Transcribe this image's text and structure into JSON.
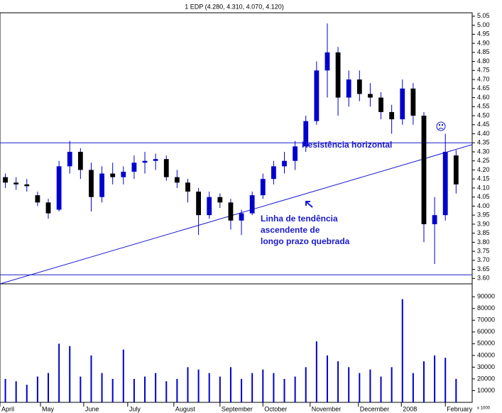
{
  "chart_data": {
    "type": "candlestick",
    "title": "1 EDP (4.280, 4.310, 4.070, 4.120)",
    "x": [
      0.5,
      1.5,
      2.5,
      3.5,
      4.5,
      5.5,
      6.5,
      7.5,
      8.5,
      9.5,
      10.5,
      11.5,
      12.5,
      13.5,
      14.5,
      15.5,
      16.5,
      17.5,
      18.5,
      19.5,
      20.5,
      21.5,
      22.5,
      23.5,
      24.5,
      25.5,
      26.5,
      27.5,
      28.5,
      29.5,
      30.5,
      31.5,
      32.5,
      33.5,
      34.5,
      35.5,
      36.5,
      37.5,
      38.5,
      39.5,
      40.5,
      41.5,
      42.5
    ],
    "open": [
      4.16,
      4.13,
      4.12,
      4.06,
      4.02,
      3.98,
      4.22,
      4.3,
      4.2,
      4.05,
      4.18,
      4.16,
      4.19,
      4.24,
      4.25,
      4.26,
      4.16,
      4.13,
      4.08,
      3.95,
      4.05,
      4.02,
      3.92,
      3.96,
      4.06,
      4.15,
      4.22,
      4.25,
      4.33,
      4.47,
      4.75,
      4.85,
      4.6,
      4.7,
      4.62,
      4.6,
      4.52,
      4.48,
      4.65,
      4.5,
      3.9,
      3.95,
      4.28
    ],
    "high": [
      4.18,
      4.16,
      4.15,
      4.08,
      4.04,
      4.25,
      4.36,
      4.32,
      4.24,
      4.22,
      4.24,
      4.22,
      4.28,
      4.3,
      4.29,
      4.28,
      4.2,
      4.15,
      4.1,
      4.08,
      4.07,
      4.04,
      3.98,
      4.08,
      4.18,
      4.25,
      4.3,
      4.36,
      4.5,
      4.8,
      5.01,
      4.88,
      4.75,
      4.75,
      4.68,
      4.63,
      4.56,
      4.7,
      4.68,
      4.52,
      4.05,
      4.4,
      4.31
    ],
    "low": [
      4.1,
      4.09,
      4.08,
      4.0,
      3.93,
      3.97,
      4.18,
      4.15,
      3.97,
      4.02,
      4.12,
      4.12,
      4.15,
      4.18,
      4.2,
      4.14,
      4.1,
      4.02,
      3.84,
      3.93,
      3.99,
      3.87,
      3.84,
      3.95,
      4.04,
      4.12,
      4.18,
      4.2,
      4.3,
      4.45,
      4.6,
      4.5,
      4.55,
      4.58,
      4.55,
      4.48,
      4.4,
      4.45,
      4.45,
      3.8,
      3.68,
      3.92,
      4.07
    ],
    "close": [
      4.13,
      4.12,
      4.11,
      4.02,
      3.96,
      4.22,
      4.3,
      4.2,
      4.05,
      4.18,
      4.16,
      4.19,
      4.24,
      4.25,
      4.26,
      4.16,
      4.13,
      4.08,
      3.95,
      4.05,
      4.02,
      3.92,
      3.96,
      4.06,
      4.15,
      4.22,
      4.25,
      4.33,
      4.47,
      4.75,
      4.85,
      4.6,
      4.7,
      4.62,
      4.6,
      4.52,
      4.48,
      4.65,
      4.5,
      3.9,
      3.95,
      4.3,
      4.12
    ],
    "volume": [
      20000,
      18000,
      15000,
      22000,
      25000,
      50000,
      48000,
      22000,
      40000,
      25000,
      20000,
      45000,
      20000,
      22000,
      25000,
      18000,
      20000,
      30000,
      28000,
      25000,
      22000,
      30000,
      20000,
      25000,
      28000,
      25000,
      20000,
      22000,
      30000,
      52000,
      40000,
      35000,
      30000,
      25000,
      28000,
      22000,
      30000,
      88000,
      25000,
      35000,
      40000,
      38000,
      20000
    ],
    "up_color": "#0000cc",
    "down_color": "#000000",
    "line_color": "#1a1acc",
    "xlim": [
      0,
      44
    ],
    "xticks": [
      {
        "value": 0,
        "label": "April"
      },
      {
        "value": 3.77,
        "label": "May"
      },
      {
        "value": 7.8,
        "label": "June"
      },
      {
        "value": 11.9,
        "label": "July"
      },
      {
        "value": 16.2,
        "label": "August"
      },
      {
        "value": 20.5,
        "label": "September"
      },
      {
        "value": 24.5,
        "label": "October"
      },
      {
        "value": 28.9,
        "label": "November"
      },
      {
        "value": 33.4,
        "label": "December"
      },
      {
        "value": 37.4,
        "label": "2008"
      },
      {
        "value": 41.5,
        "label": "February"
      }
    ],
    "ylim": [
      3.57,
      5.12
    ],
    "yticks": [
      {
        "value": 3.6,
        "label": "3.60"
      },
      {
        "value": 3.65,
        "label": "3.65"
      },
      {
        "value": 3.7,
        "label": "3.70"
      },
      {
        "value": 3.75,
        "label": "3.75"
      },
      {
        "value": 3.8,
        "label": "3.80"
      },
      {
        "value": 3.85,
        "label": "3.85"
      },
      {
        "value": 3.9,
        "label": "3.90"
      },
      {
        "value": 3.95,
        "label": "3.95"
      },
      {
        "value": 4.0,
        "label": "4.00"
      },
      {
        "value": 4.05,
        "label": "4.05"
      },
      {
        "value": 4.1,
        "label": "4.10"
      },
      {
        "value": 4.15,
        "label": "4.15"
      },
      {
        "value": 4.2,
        "label": "4.20"
      },
      {
        "value": 4.25,
        "label": "4.25"
      },
      {
        "value": 4.3,
        "label": "4.30"
      },
      {
        "value": 4.35,
        "label": "4.35"
      },
      {
        "value": 4.4,
        "label": "4.40"
      },
      {
        "value": 4.45,
        "label": "4.45"
      },
      {
        "value": 4.5,
        "label": "4.50"
      },
      {
        "value": 4.55,
        "label": "4.55"
      },
      {
        "value": 4.6,
        "label": "4.60"
      },
      {
        "value": 4.65,
        "label": "4.65"
      },
      {
        "value": 4.7,
        "label": "4.70"
      },
      {
        "value": 4.75,
        "label": "4.75"
      },
      {
        "value": 4.8,
        "label": "4.80"
      },
      {
        "value": 4.85,
        "label": "4.85"
      },
      {
        "value": 4.9,
        "label": "4.90"
      },
      {
        "value": 4.95,
        "label": "4.95"
      },
      {
        "value": 5.0,
        "label": "5.00"
      },
      {
        "value": 5.05,
        "label": "5.05"
      }
    ],
    "y2lim": [
      0,
      98000
    ],
    "y2ticks": [
      10000,
      20000,
      30000,
      40000,
      50000,
      60000,
      70000,
      80000,
      90000
    ],
    "volume_unit": "x 1000",
    "resistance": 4.35,
    "support": 3.62,
    "trendline": {
      "x": [
        0,
        44
      ],
      "y": [
        3.57,
        4.34
      ]
    },
    "annotations": {
      "resistance": "Resistência horizontal",
      "trendline": [
        "Linha de tendência",
        "ascendente de",
        "longo prazo quebrada"
      ]
    }
  }
}
